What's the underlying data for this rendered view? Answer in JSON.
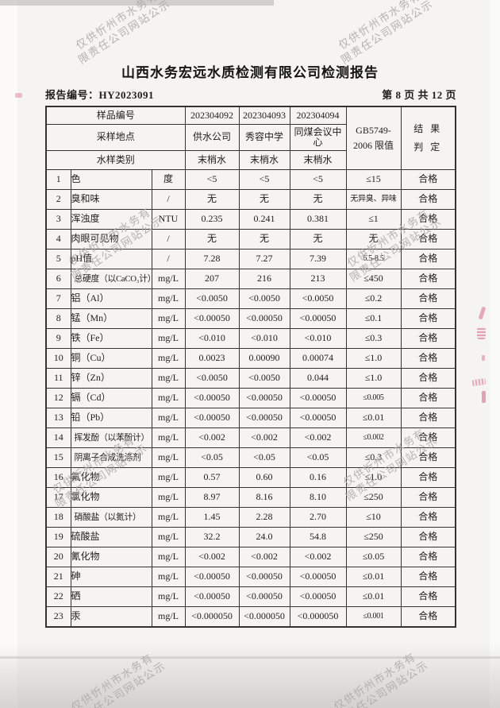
{
  "colors": {
    "paper": "#f5f4f1",
    "ink": "#1e1e1e",
    "border": "#33322f",
    "watermark": "#adacaa",
    "stamp": "#d0507c"
  },
  "watermark": {
    "line1": "仅供忻州市水务有",
    "line2": "限责任公司网站公示"
  },
  "header": {
    "title": "山西水务宏远水质检测有限公司检测报告",
    "report_no": "报告编号：HY2023091",
    "page_info": "第 8 页 共 12 页"
  },
  "table": {
    "header": {
      "sample_no_label": "样品编号",
      "sample_nos": [
        "202304092",
        "202304093",
        "202304094"
      ],
      "location_label": "采样地点",
      "locations": [
        "供水公司",
        "秀容中学",
        "同煤会议中心"
      ],
      "type_label": "水样类别",
      "types": [
        "末梢水",
        "末梢水",
        "末梢水"
      ],
      "limit_line1": "GB5749-",
      "limit_line2": "2006 限值",
      "result_line1": "结 果",
      "result_line2": "判 定"
    },
    "rows": [
      {
        "no": "1",
        "item": "色",
        "unit": "度",
        "v1": "<5",
        "v2": "<5",
        "v3": "<5",
        "limit": "≤15",
        "result": "合格"
      },
      {
        "no": "2",
        "item": "臭和味",
        "unit": "/",
        "v1": "无",
        "v2": "无",
        "v3": "无",
        "limit": "无异臭、异味",
        "result": "合格"
      },
      {
        "no": "3",
        "item": "浑浊度",
        "unit": "NTU",
        "v1": "0.235",
        "v2": "0.241",
        "v3": "0.381",
        "limit": "≤1",
        "result": "合格"
      },
      {
        "no": "4",
        "item": "肉眼可见物",
        "unit": "/",
        "v1": "无",
        "v2": "无",
        "v3": "无",
        "limit": "无",
        "result": "合格"
      },
      {
        "no": "5",
        "item": "pH值",
        "unit": "/",
        "v1": "7.28",
        "v2": "7.27",
        "v3": "7.39",
        "limit": "6.5-8.5",
        "result": "合格"
      },
      {
        "no": "6",
        "item": "总硬度（以CaCO₃计）",
        "unit": "mg/L",
        "v1": "207",
        "v2": "216",
        "v3": "213",
        "limit": "≤450",
        "result": "合格"
      },
      {
        "no": "7",
        "item": "铝（Al）",
        "unit": "mg/L",
        "v1": "<0.0050",
        "v2": "<0.0050",
        "v3": "<0.0050",
        "limit": "≤0.2",
        "result": "合格"
      },
      {
        "no": "8",
        "item": "锰（Mn）",
        "unit": "mg/L",
        "v1": "<0.00050",
        "v2": "<0.00050",
        "v3": "<0.00050",
        "limit": "≤0.1",
        "result": "合格"
      },
      {
        "no": "9",
        "item": "铁（Fe）",
        "unit": "mg/L",
        "v1": "<0.010",
        "v2": "<0.010",
        "v3": "<0.010",
        "limit": "≤0.3",
        "result": "合格"
      },
      {
        "no": "10",
        "item": "铜（Cu）",
        "unit": "mg/L",
        "v1": "0.0023",
        "v2": "0.00090",
        "v3": "0.00074",
        "limit": "≤1.0",
        "result": "合格"
      },
      {
        "no": "11",
        "item": "锌（Zn）",
        "unit": "mg/L",
        "v1": "<0.0050",
        "v2": "<0.0050",
        "v3": "0.044",
        "limit": "≤1.0",
        "result": "合格"
      },
      {
        "no": "12",
        "item": "镉（Cd）",
        "unit": "mg/L",
        "v1": "<0.00050",
        "v2": "<0.00050",
        "v3": "<0.00050",
        "limit": "≤0.005",
        "result": "合格"
      },
      {
        "no": "13",
        "item": "铅（Pb）",
        "unit": "mg/L",
        "v1": "<0.00050",
        "v2": "<0.00050",
        "v3": "<0.00050",
        "limit": "≤0.01",
        "result": "合格"
      },
      {
        "no": "14",
        "item": "挥发酚（以苯酚计）",
        "unit": "mg/L",
        "v1": "<0.002",
        "v2": "<0.002",
        "v3": "<0.002",
        "limit": "≤0.002",
        "result": "合格"
      },
      {
        "no": "15",
        "item": "阴离子合成洗涤剂",
        "unit": "mg/L",
        "v1": "<0.05",
        "v2": "<0.05",
        "v3": "<0.05",
        "limit": "≤0.3",
        "result": "合格"
      },
      {
        "no": "16",
        "item": "氟化物",
        "unit": "mg/L",
        "v1": "0.57",
        "v2": "0.60",
        "v3": "0.16",
        "limit": "≤1.0",
        "result": "合格"
      },
      {
        "no": "17",
        "item": "氯化物",
        "unit": "mg/L",
        "v1": "8.97",
        "v2": "8.16",
        "v3": "8.10",
        "limit": "≤250",
        "result": "合格"
      },
      {
        "no": "18",
        "item": "硝酸盐（以氮计）",
        "unit": "mg/L",
        "v1": "1.45",
        "v2": "2.28",
        "v3": "2.70",
        "limit": "≤10",
        "result": "合格"
      },
      {
        "no": "19",
        "item": "硫酸盐",
        "unit": "mg/L",
        "v1": "32.2",
        "v2": "24.0",
        "v3": "54.8",
        "limit": "≤250",
        "result": "合格"
      },
      {
        "no": "20",
        "item": "氰化物",
        "unit": "mg/L",
        "v1": "<0.002",
        "v2": "<0.002",
        "v3": "<0.002",
        "limit": "≤0.05",
        "result": "合格"
      },
      {
        "no": "21",
        "item": "砷",
        "unit": "mg/L",
        "v1": "<0.00050",
        "v2": "<0.00050",
        "v3": "<0.00050",
        "limit": "≤0.01",
        "result": "合格"
      },
      {
        "no": "22",
        "item": "硒",
        "unit": "mg/L",
        "v1": "<0.00050",
        "v2": "<0.00050",
        "v3": "<0.00050",
        "limit": "≤0.01",
        "result": "合格"
      },
      {
        "no": "23",
        "item": "汞",
        "unit": "mg/L",
        "v1": "<0.000050",
        "v2": "<0.000050",
        "v3": "<0.000050",
        "limit": "≤0.001",
        "result": "合格"
      }
    ]
  }
}
